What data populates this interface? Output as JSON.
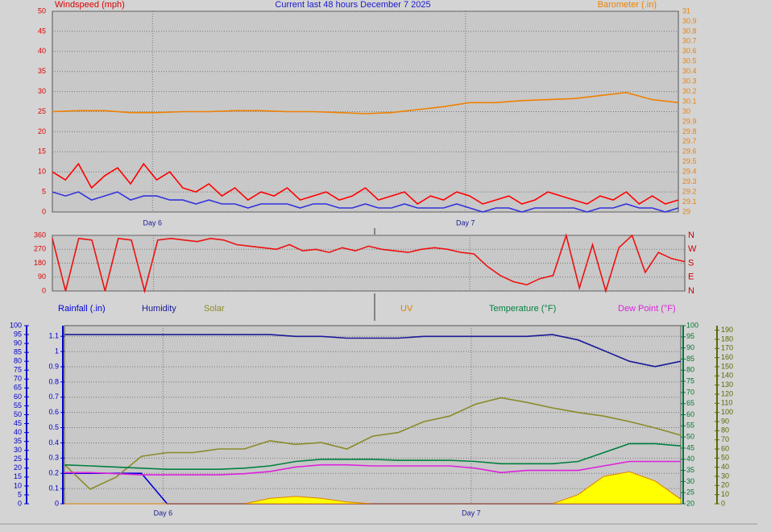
{
  "chart_data": [
    {
      "type": "line",
      "title": "Current last 48 hours December 7 2025",
      "y_label": "Windspeed (mph)",
      "y2_label": "Barometer (.in)",
      "xtick_labels": [
        "Day 6",
        "Day 7"
      ],
      "ylim": [
        0,
        50
      ],
      "yticks": [
        0,
        5,
        10,
        15,
        20,
        25,
        30,
        35,
        40,
        45,
        50
      ],
      "y2lim": [
        29,
        31
      ],
      "y2ticks": [
        29,
        29.1,
        29.2,
        29.3,
        29.4,
        29.5,
        29.6,
        29.7,
        29.8,
        29.9,
        30,
        30.1,
        30.2,
        30.3,
        30.4,
        30.5,
        30.6,
        30.7,
        30.8,
        30.9,
        31
      ],
      "grid": "y",
      "series": [
        {
          "color": "#ff0000",
          "axis": "y",
          "values": [
            10,
            8,
            12,
            6,
            9,
            11,
            7,
            12,
            8,
            10,
            6,
            5,
            7,
            4,
            6,
            3,
            5,
            4,
            6,
            3,
            4,
            5,
            3,
            4,
            6,
            3,
            4,
            5,
            2,
            4,
            3,
            5,
            4,
            2,
            3,
            4,
            2,
            3,
            5,
            4,
            3,
            2,
            4,
            3,
            5,
            2,
            4,
            2,
            3
          ]
        },
        {
          "color": "#3333dd",
          "axis": "y",
          "values": [
            5,
            4,
            5,
            3,
            4,
            5,
            3,
            4,
            4,
            3,
            3,
            2,
            3,
            2,
            2,
            1,
            2,
            2,
            2,
            1,
            2,
            2,
            1,
            1,
            2,
            1,
            1,
            2,
            1,
            1,
            1,
            2,
            1,
            0,
            1,
            1,
            0,
            1,
            1,
            1,
            1,
            0,
            1,
            1,
            2,
            1,
            1,
            0,
            1
          ]
        },
        {
          "color": "#f08000",
          "axis": "y2",
          "values": [
            30.0,
            30.01,
            30.01,
            29.99,
            29.99,
            30.0,
            30.0,
            30.01,
            30.01,
            30.0,
            30.0,
            29.99,
            29.98,
            29.99,
            30.02,
            30.05,
            30.09,
            30.09,
            30.11,
            30.12,
            30.13,
            30.16,
            30.19,
            30.12,
            30.09
          ]
        }
      ]
    },
    {
      "type": "line",
      "ylim": [
        0,
        360
      ],
      "yticks": [
        0,
        90,
        180,
        270,
        360
      ],
      "y2lim": [
        0,
        360
      ],
      "y2ticks": [
        {
          "value": 360,
          "label": "N"
        },
        {
          "value": 270,
          "label": "W"
        },
        {
          "value": 180,
          "label": "S"
        },
        {
          "value": 90,
          "label": "E"
        },
        {
          "value": 0,
          "label": "N"
        }
      ],
      "grid": "y",
      "series": [
        {
          "color": "#ee1111",
          "axis": "y",
          "values": [
            340,
            0,
            340,
            330,
            0,
            340,
            330,
            0,
            330,
            340,
            330,
            320,
            340,
            330,
            300,
            290,
            280,
            270,
            300,
            260,
            270,
            250,
            280,
            260,
            290,
            270,
            260,
            250,
            270,
            280,
            270,
            250,
            240,
            160,
            100,
            60,
            40,
            80,
            100,
            360,
            20,
            300,
            0,
            280,
            360,
            120,
            250,
            210,
            190
          ]
        }
      ]
    },
    {
      "type": "line",
      "xtick_labels": [
        "Day 6",
        "Day 7"
      ],
      "ylim": [
        0,
        100
      ],
      "yticks": [
        0,
        5,
        10,
        15,
        20,
        25,
        30,
        35,
        40,
        45,
        50,
        55,
        60,
        65,
        70,
        75,
        80,
        85,
        90,
        95,
        100
      ],
      "y2lim": [
        0,
        1.17
      ],
      "y2ticks": [
        0,
        0.1,
        0.2,
        0.3,
        0.4,
        0.5,
        0.6,
        0.7,
        0.8,
        0.9,
        1,
        1.1
      ],
      "y3lim": [
        20,
        100
      ],
      "y3ticks": [
        20,
        25,
        30,
        35,
        40,
        45,
        50,
        55,
        60,
        65,
        70,
        75,
        80,
        85,
        90,
        95,
        100
      ],
      "y4lim": [
        0,
        195
      ],
      "y4ticks": [
        0,
        10,
        20,
        30,
        40,
        50,
        60,
        70,
        80,
        90,
        100,
        110,
        120,
        130,
        140,
        150,
        160,
        170,
        180,
        190
      ],
      "grid": "y2",
      "series": [
        {
          "name": "Rainfall (.in)",
          "color": "#0000dd",
          "axis": "y2",
          "values": [
            0.2,
            0.2,
            0.2,
            0.2,
            0,
            0,
            0,
            0,
            0,
            0,
            0,
            0,
            0,
            0,
            0,
            0,
            0,
            0,
            0,
            0,
            0,
            0,
            0,
            0,
            0
          ]
        },
        {
          "name": "Humidity",
          "color": "#1a1a99",
          "axis": "y",
          "values": [
            95,
            95,
            95,
            95,
            95,
            95,
            95,
            95,
            95,
            94,
            94,
            93,
            93,
            93,
            94,
            94,
            94,
            94,
            94,
            95,
            92,
            86,
            80,
            77,
            80
          ]
        },
        {
          "name": "Solar",
          "color": "#8a8a2a",
          "axis": "y4",
          "values": [
            43,
            16,
            29,
            52,
            56,
            56,
            60,
            60,
            69,
            65,
            67,
            60,
            74,
            78,
            90,
            96,
            109,
            116,
            111,
            105,
            100,
            96,
            90,
            83,
            75
          ]
        },
        {
          "name": "UV",
          "color": "#e08000",
          "fill": "#ffff00",
          "axis": "y4",
          "values": [
            0,
            0,
            0,
            0,
            0,
            0,
            0,
            0,
            6,
            8,
            6,
            2,
            0,
            0,
            0,
            0,
            0,
            0,
            0,
            0,
            10,
            30,
            35,
            25,
            5
          ]
        },
        {
          "name": "Temperature (°F)",
          "color": "#008040",
          "axis": "y3",
          "values": [
            37.5,
            37,
            36.5,
            36,
            35.5,
            35.5,
            35.5,
            36,
            37,
            39,
            40,
            40,
            40,
            39.5,
            39.5,
            39.5,
            39,
            38,
            38,
            38,
            39,
            43,
            47,
            47,
            46
          ]
        },
        {
          "name": "Dew Point (°F)",
          "color": "#dd22dd",
          "axis": "y3",
          "values": [
            34,
            34,
            33.5,
            33,
            33,
            33,
            33,
            33.5,
            34.5,
            36.5,
            37.5,
            37.5,
            37,
            37,
            37,
            37,
            36,
            34,
            35,
            35,
            35,
            37,
            39,
            39,
            39
          ]
        }
      ]
    }
  ]
}
